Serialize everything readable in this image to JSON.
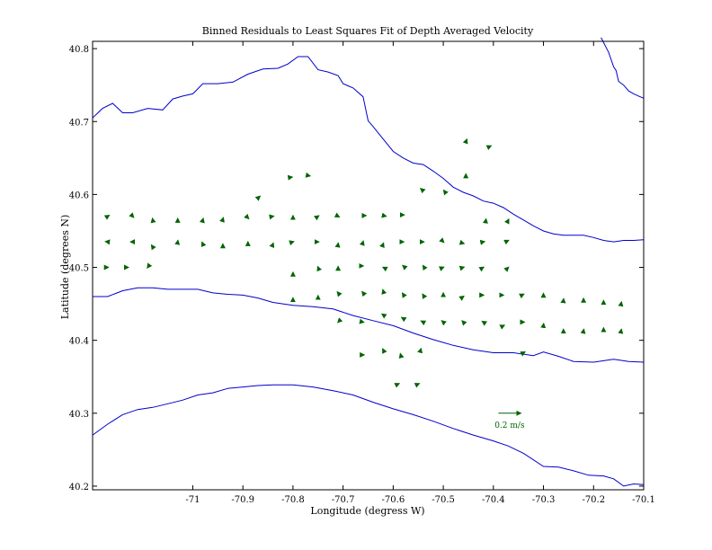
{
  "chart_data": {
    "type": "quiver",
    "title": "Binned Residuals to Least Squares Fit of Depth Averaged Velocity",
    "xlabel": "Longitude (degress W)",
    "ylabel": "Latitude (degrees N)",
    "xlim": [
      -71.2,
      -70.1
    ],
    "ylim": [
      40.195,
      40.81
    ],
    "xticks": [
      -71,
      -70.9,
      -70.8,
      -70.7,
      -70.6,
      -70.5,
      -70.4,
      -70.3,
      -70.2,
      -70.1
    ],
    "xtick_labels": [
      "-71",
      "-70.9",
      "-70.8",
      "-70.7",
      "-70.6",
      "-70.5",
      "-70.4",
      "-70.3",
      "-70.2",
      "-70.1"
    ],
    "yticks": [
      40.2,
      40.3,
      40.4,
      40.5,
      40.6,
      40.7,
      40.8
    ],
    "ytick_labels": [
      "40.2",
      "40.3",
      "40.4",
      "40.5",
      "40.6",
      "40.7",
      "40.8"
    ],
    "grid": false,
    "colors": {
      "vectors": "#006400",
      "isobaths": "#0000cc",
      "axes": "#000000"
    },
    "scale_vector": {
      "lon": -70.39,
      "lat": 40.3,
      "u": 0.2,
      "v": 0,
      "label": "0.2 m/s"
    },
    "isobaths": [
      {
        "lon": [
          -71.2,
          -71.18,
          -71.16,
          -71.14,
          -71.12,
          -71.09,
          -71.06,
          -71.04,
          -71.02,
          -71.0,
          -70.98,
          -70.95,
          -70.92,
          -70.89,
          -70.86,
          -70.83,
          -70.81,
          -70.79,
          -70.77,
          -70.75,
          -70.73,
          -70.71,
          -70.7,
          -70.69,
          -70.68,
          -70.66,
          -70.65,
          -70.64,
          -70.62,
          -70.6,
          -70.58,
          -70.56,
          -70.54,
          -70.52,
          -70.5,
          -70.48,
          -70.46,
          -70.44,
          -70.42,
          -70.4,
          -70.38,
          -70.36,
          -70.34,
          -70.32,
          -70.3,
          -70.28,
          -70.26,
          -70.24,
          -70.22,
          -70.2,
          -70.18,
          -70.16,
          -70.14,
          -70.12,
          -70.1
        ],
        "lat": [
          40.705,
          40.718,
          40.725,
          40.712,
          40.712,
          40.718,
          40.716,
          40.731,
          40.735,
          40.738,
          40.752,
          40.752,
          40.754,
          40.765,
          40.772,
          40.773,
          40.779,
          40.789,
          40.789,
          40.771,
          40.768,
          40.763,
          40.752,
          40.749,
          40.746,
          40.734,
          40.701,
          40.693,
          40.676,
          40.659,
          40.65,
          40.643,
          40.641,
          40.632,
          40.622,
          40.61,
          40.603,
          40.598,
          40.591,
          40.588,
          40.582,
          40.573,
          40.565,
          40.557,
          40.55,
          40.546,
          40.544,
          40.544,
          40.544,
          40.541,
          40.537,
          40.535,
          40.537,
          40.537,
          40.538
        ]
      },
      {
        "lon": [
          -70.185,
          -70.17,
          -70.16,
          -70.155,
          -70.15,
          -70.14,
          -70.13,
          -70.12,
          -70.11,
          -70.1
        ],
        "lat": [
          40.815,
          40.795,
          40.775,
          40.77,
          40.755,
          40.75,
          40.742,
          40.738,
          40.735,
          40.732
        ]
      },
      {
        "lon": [
          -71.2,
          -71.17,
          -71.14,
          -71.11,
          -71.08,
          -71.05,
          -71.02,
          -70.99,
          -70.96,
          -70.93,
          -70.9,
          -70.87,
          -70.84,
          -70.8,
          -70.76,
          -70.72,
          -70.68,
          -70.64,
          -70.6,
          -70.56,
          -70.52,
          -70.48,
          -70.44,
          -70.4,
          -70.36,
          -70.32,
          -70.3,
          -70.27,
          -70.24,
          -70.2,
          -70.16,
          -70.13,
          -70.1
        ],
        "lat": [
          40.46,
          40.46,
          40.468,
          40.472,
          40.472,
          40.47,
          40.47,
          40.47,
          40.465,
          40.463,
          40.462,
          40.458,
          40.452,
          40.448,
          40.446,
          40.443,
          40.434,
          40.427,
          40.42,
          40.41,
          40.401,
          40.393,
          40.387,
          40.383,
          40.383,
          40.379,
          40.384,
          40.378,
          40.371,
          40.37,
          40.374,
          40.371,
          40.37
        ]
      },
      {
        "lon": [
          -71.2,
          -71.17,
          -71.14,
          -71.11,
          -71.08,
          -71.05,
          -71.02,
          -70.99,
          -70.96,
          -70.93,
          -70.9,
          -70.87,
          -70.84,
          -70.8,
          -70.76,
          -70.72,
          -70.68,
          -70.64,
          -70.6,
          -70.56,
          -70.52,
          -70.48,
          -70.44,
          -70.4,
          -70.37,
          -70.34,
          -70.3,
          -70.27,
          -70.24,
          -70.21,
          -70.18,
          -70.16,
          -70.14,
          -70.12,
          -70.1
        ],
        "lat": [
          40.27,
          40.285,
          40.298,
          40.305,
          40.308,
          40.313,
          40.318,
          40.325,
          40.328,
          40.334,
          40.336,
          40.338,
          40.339,
          40.339,
          40.336,
          40.331,
          40.325,
          40.315,
          40.306,
          40.298,
          40.289,
          40.279,
          40.27,
          40.262,
          40.255,
          40.245,
          40.227,
          40.226,
          40.221,
          40.215,
          40.214,
          40.21,
          40.2,
          40.203,
          40.202
        ]
      }
    ],
    "vectors": [
      {
        "lon": -71.17,
        "lat": 40.57,
        "u": 0.015,
        "v": 0.01
      },
      {
        "lon": -71.12,
        "lat": 40.57,
        "u": 0.01,
        "v": -0.01
      },
      {
        "lon": -71.08,
        "lat": 40.565,
        "u": -0.003,
        "v": 0.015
      },
      {
        "lon": -71.03,
        "lat": 40.565,
        "u": 0.0,
        "v": 0.015
      },
      {
        "lon": -70.98,
        "lat": 40.565,
        "u": 0.004,
        "v": 0.015
      },
      {
        "lon": -70.94,
        "lat": 40.566,
        "u": 0.005,
        "v": 0.015
      },
      {
        "lon": -70.89,
        "lat": 40.568,
        "u": 0.008,
        "v": -0.008
      },
      {
        "lon": -70.84,
        "lat": 40.57,
        "u": 0.008,
        "v": 0.002
      },
      {
        "lon": -70.8,
        "lat": 40.57,
        "u": 0.0,
        "v": 0.008
      },
      {
        "lon": -70.75,
        "lat": 40.57,
        "u": 0.008,
        "v": 0.006
      },
      {
        "lon": -70.71,
        "lat": 40.57,
        "u": 0.012,
        "v": -0.006
      },
      {
        "lon": -70.66,
        "lat": 40.571,
        "u": 0.028,
        "v": 0.0
      },
      {
        "lon": -70.62,
        "lat": 40.571,
        "u": 0.028,
        "v": -0.006
      },
      {
        "lon": -70.58,
        "lat": 40.572,
        "u": 0.01,
        "v": 0.0
      },
      {
        "lon": -70.87,
        "lat": 40.595,
        "u": 0.02,
        "v": 0.018
      },
      {
        "lon": -70.81,
        "lat": 40.623,
        "u": 0.04,
        "v": 0.006
      },
      {
        "lon": -70.77,
        "lat": 40.626,
        "u": 0.02,
        "v": -0.004
      },
      {
        "lon": -70.455,
        "lat": 40.672,
        "u": 0.01,
        "v": 0.025
      },
      {
        "lon": -70.41,
        "lat": 40.665,
        "u": 0.025,
        "v": 0.012
      },
      {
        "lon": -70.455,
        "lat": 40.625,
        "u": 0.0,
        "v": 0.022
      },
      {
        "lon": -70.54,
        "lat": 40.605,
        "u": -0.025,
        "v": 0.022
      },
      {
        "lon": -70.495,
        "lat": 40.602,
        "u": -0.02,
        "v": 0.025
      },
      {
        "lon": -70.415,
        "lat": 40.565,
        "u": 0.002,
        "v": 0.01
      },
      {
        "lon": -70.37,
        "lat": 40.565,
        "u": 0.004,
        "v": 0.008
      },
      {
        "lon": -71.17,
        "lat": 40.535,
        "u": -0.02,
        "v": 0.003
      },
      {
        "lon": -71.12,
        "lat": 40.535,
        "u": -0.02,
        "v": 0.0
      },
      {
        "lon": -71.08,
        "lat": 40.528,
        "u": -0.012,
        "v": 0.018
      },
      {
        "lon": -71.03,
        "lat": 40.535,
        "u": 0.002,
        "v": 0.015
      },
      {
        "lon": -70.98,
        "lat": 40.532,
        "u": -0.008,
        "v": 0.018
      },
      {
        "lon": -70.94,
        "lat": 40.53,
        "u": 0.0,
        "v": 0.015
      },
      {
        "lon": -70.89,
        "lat": 40.533,
        "u": 0.0,
        "v": 0.015
      },
      {
        "lon": -70.84,
        "lat": 40.532,
        "u": 0.004,
        "v": 0.01
      },
      {
        "lon": -70.8,
        "lat": 40.535,
        "u": 0.008,
        "v": 0.003
      },
      {
        "lon": -70.75,
        "lat": 40.535,
        "u": 0.008,
        "v": 0.0
      },
      {
        "lon": -70.71,
        "lat": 40.532,
        "u": 0.002,
        "v": 0.01
      },
      {
        "lon": -70.66,
        "lat": 40.535,
        "u": 0.002,
        "v": 0.008
      },
      {
        "lon": -70.62,
        "lat": 40.532,
        "u": 0.004,
        "v": 0.01
      },
      {
        "lon": -70.58,
        "lat": 40.535,
        "u": 0.006,
        "v": 0.0
      },
      {
        "lon": -70.54,
        "lat": 40.535,
        "u": 0.008,
        "v": 0.0
      },
      {
        "lon": -70.5,
        "lat": 40.535,
        "u": 0.006,
        "v": -0.005
      },
      {
        "lon": -70.46,
        "lat": 40.533,
        "u": 0.008,
        "v": -0.003
      },
      {
        "lon": -70.42,
        "lat": 40.535,
        "u": 0.012,
        "v": 0.003
      },
      {
        "lon": -70.37,
        "lat": 40.537,
        "u": 0.003,
        "v": 0.002
      },
      {
        "lon": -71.17,
        "lat": 40.5,
        "u": 0.008,
        "v": 0.0
      },
      {
        "lon": -71.13,
        "lat": 40.5,
        "u": 0.008,
        "v": 0.0
      },
      {
        "lon": -71.09,
        "lat": 40.5,
        "u": -0.004,
        "v": -0.005
      },
      {
        "lon": -70.8,
        "lat": 40.492,
        "u": 0.0,
        "v": 0.01
      },
      {
        "lon": -70.75,
        "lat": 40.5,
        "u": -0.003,
        "v": 0.008
      },
      {
        "lon": -70.71,
        "lat": 40.5,
        "u": 0.0,
        "v": 0.01
      },
      {
        "lon": -70.66,
        "lat": 40.502,
        "u": 0.003,
        "v": 0.0
      },
      {
        "lon": -70.62,
        "lat": 40.5,
        "u": -0.003,
        "v": 0.002
      },
      {
        "lon": -70.58,
        "lat": 40.502,
        "u": -0.006,
        "v": 0.005
      },
      {
        "lon": -70.54,
        "lat": 40.502,
        "u": -0.003,
        "v": 0.005
      },
      {
        "lon": -70.5,
        "lat": 40.5,
        "u": 0.006,
        "v": 0.003
      },
      {
        "lon": -70.46,
        "lat": 40.5,
        "u": 0.008,
        "v": 0.003
      },
      {
        "lon": -70.42,
        "lat": 40.5,
        "u": 0.004,
        "v": 0.003
      },
      {
        "lon": -70.37,
        "lat": 40.5,
        "u": 0.002,
        "v": 0.003
      },
      {
        "lon": -70.8,
        "lat": 40.457,
        "u": 0.0,
        "v": 0.01
      },
      {
        "lon": -70.75,
        "lat": 40.46,
        "u": 0.0,
        "v": 0.01
      },
      {
        "lon": -70.71,
        "lat": 40.465,
        "u": -0.008,
        "v": 0.01
      },
      {
        "lon": -70.66,
        "lat": 40.465,
        "u": -0.01,
        "v": 0.012
      },
      {
        "lon": -70.62,
        "lat": 40.468,
        "u": -0.003,
        "v": 0.01
      },
      {
        "lon": -70.58,
        "lat": 40.463,
        "u": -0.008,
        "v": 0.012
      },
      {
        "lon": -70.54,
        "lat": 40.462,
        "u": -0.006,
        "v": 0.01
      },
      {
        "lon": -70.5,
        "lat": 40.464,
        "u": 0.0,
        "v": 0.008
      },
      {
        "lon": -70.46,
        "lat": 40.46,
        "u": 0.006,
        "v": 0.004
      },
      {
        "lon": -70.42,
        "lat": 40.462,
        "u": 0.004,
        "v": 0.0
      },
      {
        "lon": -70.38,
        "lat": 40.462,
        "u": 0.003,
        "v": 0.0
      },
      {
        "lon": -70.34,
        "lat": 40.463,
        "u": 0.005,
        "v": 0.003
      },
      {
        "lon": -70.3,
        "lat": 40.463,
        "u": 0.0,
        "v": 0.01
      },
      {
        "lon": -70.26,
        "lat": 40.455,
        "u": 0.001,
        "v": 0.015
      },
      {
        "lon": -70.22,
        "lat": 40.455,
        "u": 0.0,
        "v": 0.018
      },
      {
        "lon": -70.18,
        "lat": 40.452,
        "u": 0.0,
        "v": 0.018
      },
      {
        "lon": -70.145,
        "lat": 40.45,
        "u": 0.003,
        "v": 0.018
      },
      {
        "lon": -70.71,
        "lat": 40.425,
        "u": -0.003,
        "v": -0.003
      },
      {
        "lon": -70.66,
        "lat": 40.425,
        "u": 0.008,
        "v": -0.002
      },
      {
        "lon": -70.62,
        "lat": 40.435,
        "u": -0.012,
        "v": 0.008
      },
      {
        "lon": -70.58,
        "lat": 40.43,
        "u": -0.015,
        "v": 0.01
      },
      {
        "lon": -70.54,
        "lat": 40.425,
        "u": -0.02,
        "v": 0.01
      },
      {
        "lon": -70.5,
        "lat": 40.425,
        "u": -0.015,
        "v": 0.013
      },
      {
        "lon": -70.46,
        "lat": 40.425,
        "u": -0.012,
        "v": 0.013
      },
      {
        "lon": -70.42,
        "lat": 40.425,
        "u": -0.012,
        "v": 0.008
      },
      {
        "lon": -70.38,
        "lat": 40.42,
        "u": 0.01,
        "v": 0.005
      },
      {
        "lon": -70.34,
        "lat": 40.425,
        "u": 0.01,
        "v": 0.0
      },
      {
        "lon": -70.3,
        "lat": 40.42,
        "u": 0.002,
        "v": 0.02
      },
      {
        "lon": -70.26,
        "lat": 40.413,
        "u": 0.0,
        "v": 0.015
      },
      {
        "lon": -70.22,
        "lat": 40.413,
        "u": 0.003,
        "v": 0.015
      },
      {
        "lon": -70.18,
        "lat": 40.415,
        "u": 0.0,
        "v": 0.015
      },
      {
        "lon": -70.145,
        "lat": 40.413,
        "u": 0.003,
        "v": 0.015
      },
      {
        "lon": -70.66,
        "lat": 40.38,
        "u": 0.01,
        "v": 0.0
      },
      {
        "lon": -70.62,
        "lat": 40.387,
        "u": -0.005,
        "v": 0.01
      },
      {
        "lon": -70.585,
        "lat": 40.38,
        "u": -0.003,
        "v": 0.012
      },
      {
        "lon": -70.545,
        "lat": 40.387,
        "u": 0.003,
        "v": 0.012
      },
      {
        "lon": -70.59,
        "lat": 40.34,
        "u": 0.01,
        "v": 0.005
      },
      {
        "lon": -70.55,
        "lat": 40.34,
        "u": 0.01,
        "v": 0.005
      },
      {
        "lon": -70.34,
        "lat": 40.383,
        "u": 0.015,
        "v": 0.008
      }
    ]
  }
}
